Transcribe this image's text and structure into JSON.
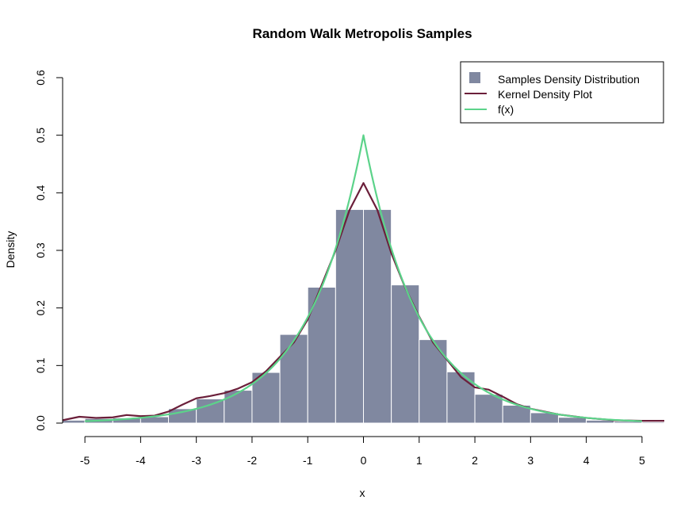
{
  "chart_data": {
    "type": "bar",
    "title": "Random Walk Metropolis Samples",
    "xlabel": "x",
    "ylabel": "Density",
    "xlim": [
      -5.4,
      5.4
    ],
    "ylim": [
      0,
      0.6
    ],
    "x_ticks": [
      "-5",
      "-4",
      "-3",
      "-2",
      "-1",
      "0",
      "1",
      "2",
      "3",
      "4",
      "5"
    ],
    "x_tick_values": [
      -5,
      -4,
      -3,
      -2,
      -1,
      0,
      1,
      2,
      3,
      4,
      5
    ],
    "y_ticks": [
      "0.0",
      "0.1",
      "0.2",
      "0.3",
      "0.4",
      "0.5",
      "0.6"
    ],
    "y_tick_values": [
      0,
      0.1,
      0.2,
      0.3,
      0.4,
      0.5,
      0.6
    ],
    "grid": false,
    "legend_position": "top-right",
    "histogram": {
      "name": "Samples Density Distribution",
      "color": "#8088a0",
      "bin_width": 0.5,
      "bin_left_edges": [
        -5.5,
        -5.0,
        -4.5,
        -4.0,
        -3.5,
        -3.0,
        -2.5,
        -2.0,
        -1.5,
        -1.0,
        -0.5,
        0.0,
        0.5,
        1.0,
        1.5,
        2.0,
        2.5,
        3.0,
        3.5,
        4.0,
        4.5,
        5.0
      ],
      "densities": [
        0.005,
        0.008,
        0.009,
        0.011,
        0.025,
        0.042,
        0.057,
        0.088,
        0.154,
        0.236,
        0.371,
        0.371,
        0.24,
        0.145,
        0.089,
        0.05,
        0.031,
        0.018,
        0.01,
        0.005,
        0.003,
        0.002
      ]
    },
    "series": [
      {
        "name": "Kernel Density Plot",
        "color": "#6b1f3a",
        "x": [
          -5.4,
          -5.1,
          -4.8,
          -4.5,
          -4.25,
          -4.0,
          -3.75,
          -3.5,
          -3.25,
          -3.0,
          -2.75,
          -2.5,
          -2.25,
          -2.0,
          -1.75,
          -1.5,
          -1.25,
          -1.0,
          -0.75,
          -0.5,
          -0.25,
          0.0,
          0.25,
          0.5,
          0.75,
          1.0,
          1.25,
          1.5,
          1.75,
          2.0,
          2.25,
          2.5,
          2.75,
          3.0,
          3.5,
          4.0,
          4.5,
          5.0,
          5.4
        ],
        "y": [
          0.005,
          0.011,
          0.009,
          0.01,
          0.014,
          0.012,
          0.013,
          0.02,
          0.032,
          0.043,
          0.047,
          0.052,
          0.06,
          0.071,
          0.09,
          0.115,
          0.14,
          0.18,
          0.24,
          0.3,
          0.37,
          0.417,
          0.37,
          0.295,
          0.235,
          0.185,
          0.14,
          0.11,
          0.08,
          0.062,
          0.058,
          0.046,
          0.033,
          0.025,
          0.015,
          0.009,
          0.005,
          0.004,
          0.004
        ]
      },
      {
        "name": "f(x)",
        "color": "#5cd38a",
        "function": "0.5*exp(-abs(x))",
        "x_range": [
          -5,
          5
        ]
      }
    ]
  }
}
